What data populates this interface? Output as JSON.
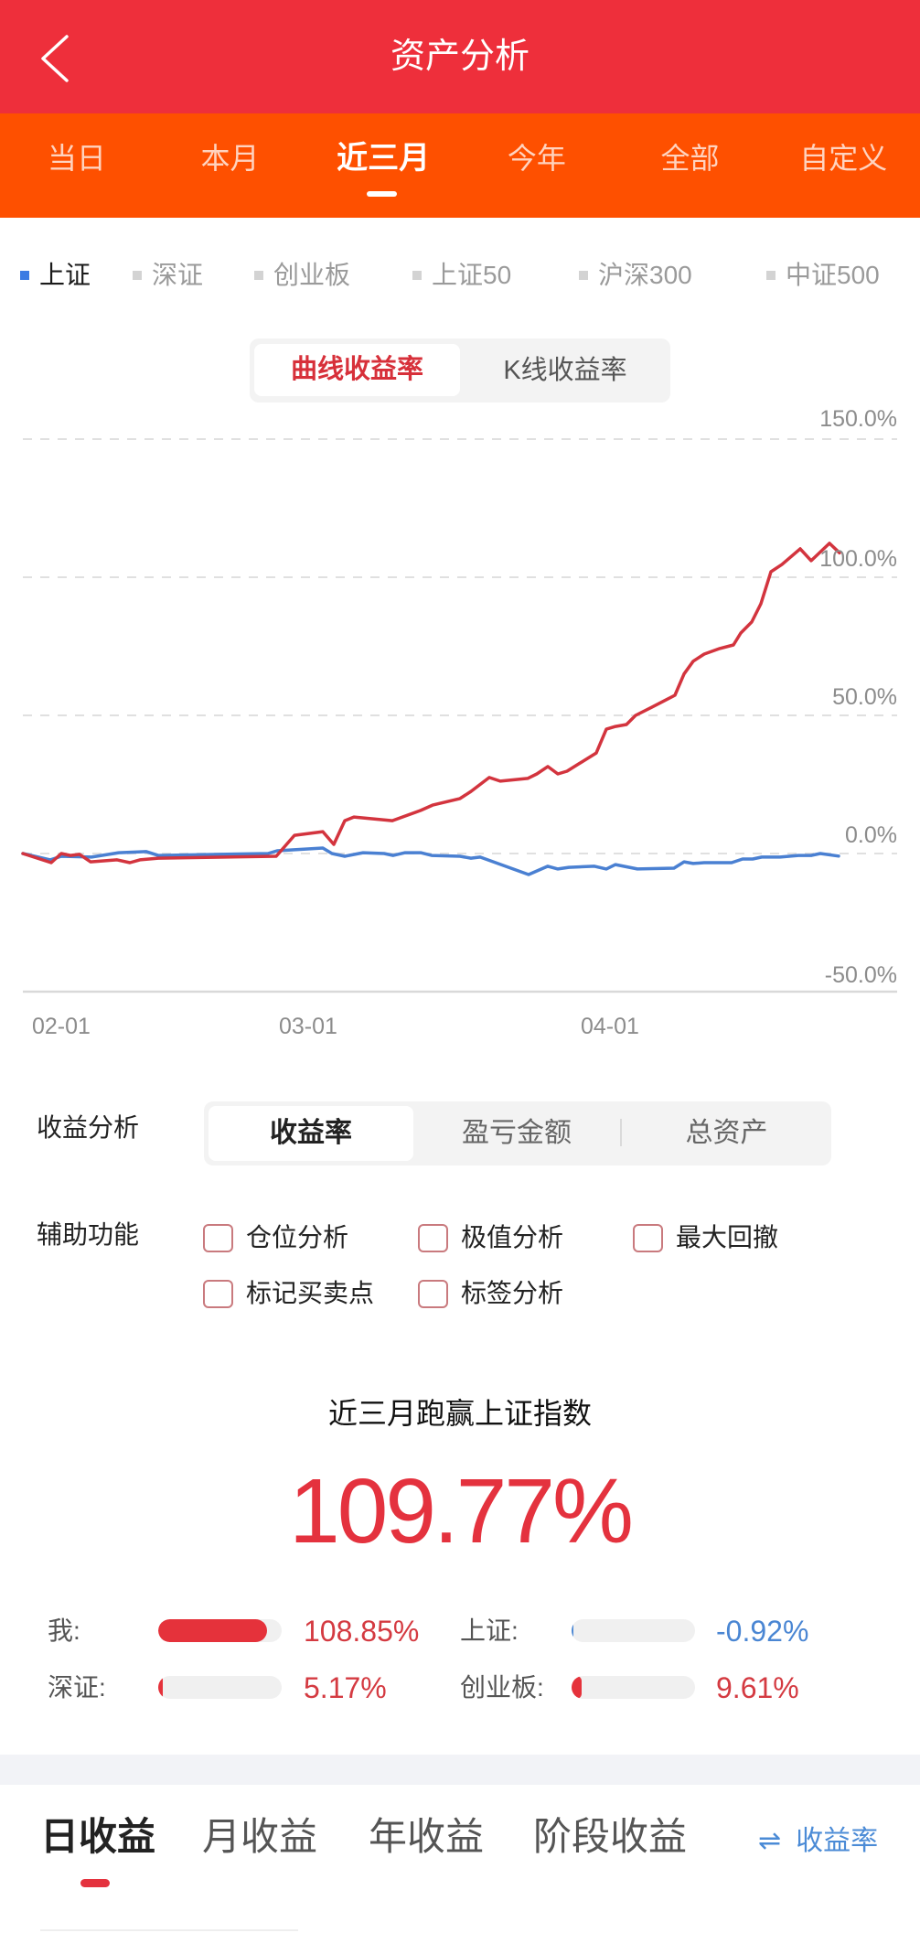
{
  "header": {
    "title": "资产分析",
    "back_icon": "chevron-left-icon"
  },
  "period_tabs": {
    "active_index": 2,
    "items": [
      {
        "label": "当日"
      },
      {
        "label": "本月"
      },
      {
        "label": "近三月"
      },
      {
        "label": "今年"
      },
      {
        "label": "全部"
      },
      {
        "label": "自定义"
      }
    ]
  },
  "index_legend": {
    "active_index": 0,
    "items": [
      {
        "label": "上证"
      },
      {
        "label": "深证"
      },
      {
        "label": "创业板"
      },
      {
        "label": "上证50"
      },
      {
        "label": "沪深300"
      },
      {
        "label": "中证500"
      }
    ]
  },
  "chart_mode_toggle": {
    "selected_index": 0,
    "options": [
      "曲线收益率",
      "K线收益率"
    ]
  },
  "chart_data": {
    "type": "line",
    "title": "",
    "xlabel": "",
    "ylabel": "",
    "ylim": [
      -50,
      150
    ],
    "y_ticks": [
      150,
      100,
      50,
      0,
      -50
    ],
    "y_tick_labels": [
      "150.0%",
      "100.0%",
      "50.0%",
      "0.0%",
      "-50.0%"
    ],
    "x_tick_labels": [
      "02-01",
      "03-01",
      "04-01"
    ],
    "x_axis_unit": "horizontal pixel position across plot (25 = start, 981 = end)",
    "grid": "dashed horizontal",
    "legend": [
      "上证"
    ],
    "series": [
      {
        "name": "上证",
        "color": "#4A80D2",
        "points": [
          [
            25,
            0
          ],
          [
            55,
            -2.3
          ],
          [
            67,
            -1
          ],
          [
            100,
            -1.3
          ],
          [
            130,
            0.3
          ],
          [
            160,
            0.7
          ],
          [
            173,
            -0.7
          ],
          [
            293,
            0
          ],
          [
            303,
            1
          ],
          [
            353,
            2
          ],
          [
            363,
            0
          ],
          [
            377,
            -1
          ],
          [
            397,
            0.3
          ],
          [
            420,
            0
          ],
          [
            430,
            -0.7
          ],
          [
            443,
            0.3
          ],
          [
            460,
            0.3
          ],
          [
            472,
            -0.7
          ],
          [
            503,
            -1
          ],
          [
            515,
            -1.7
          ],
          [
            525,
            -1.3
          ],
          [
            578,
            -7.6
          ],
          [
            599,
            -4.6
          ],
          [
            610,
            -5.6
          ],
          [
            622,
            -5
          ],
          [
            650,
            -4.6
          ],
          [
            663,
            -5.6
          ],
          [
            673,
            -4
          ],
          [
            697,
            -5.6
          ],
          [
            737,
            -5.3
          ],
          [
            748,
            -3
          ],
          [
            758,
            -3.6
          ],
          [
            770,
            -3.3
          ],
          [
            800,
            -3.3
          ],
          [
            812,
            -2
          ],
          [
            823,
            -2
          ],
          [
            833,
            -1.3
          ],
          [
            853,
            -1.3
          ],
          [
            873,
            -0.7
          ],
          [
            887,
            -0.7
          ],
          [
            897,
            0
          ],
          [
            917,
            -0.92
          ]
        ]
      },
      {
        "name": "我",
        "color": "#D3343E",
        "points": [
          [
            25,
            0
          ],
          [
            56,
            -3.3
          ],
          [
            67,
            0
          ],
          [
            77,
            -0.7
          ],
          [
            87,
            -0.3
          ],
          [
            99,
            -3
          ],
          [
            128,
            -2.3
          ],
          [
            142,
            -3.3
          ],
          [
            153,
            -2.3
          ],
          [
            173,
            -1.7
          ],
          [
            302,
            -1
          ],
          [
            322,
            6.6
          ],
          [
            353,
            7.9
          ],
          [
            365,
            3.3
          ],
          [
            377,
            11.9
          ],
          [
            387,
            13.2
          ],
          [
            420,
            12.2
          ],
          [
            429,
            11.9
          ],
          [
            460,
            15.6
          ],
          [
            473,
            17.5
          ],
          [
            503,
            19.9
          ],
          [
            515,
            22.5
          ],
          [
            535,
            27.5
          ],
          [
            547,
            26.2
          ],
          [
            577,
            27.2
          ],
          [
            587,
            28.8
          ],
          [
            599,
            31.5
          ],
          [
            610,
            28.8
          ],
          [
            620,
            29.8
          ],
          [
            633,
            32.5
          ],
          [
            652,
            36.4
          ],
          [
            663,
            45
          ],
          [
            673,
            46
          ],
          [
            685,
            46.7
          ],
          [
            695,
            50
          ],
          [
            713,
            53
          ],
          [
            738,
            57.3
          ],
          [
            748,
            65
          ],
          [
            758,
            69.6
          ],
          [
            770,
            72.2
          ],
          [
            787,
            74.2
          ],
          [
            802,
            75.5
          ],
          [
            810,
            79.8
          ],
          [
            822,
            83.8
          ],
          [
            832,
            90.4
          ],
          [
            843,
            102
          ],
          [
            855,
            104.6
          ],
          [
            875,
            110.3
          ],
          [
            887,
            106
          ],
          [
            907,
            112.3
          ],
          [
            918,
            108.85
          ]
        ]
      }
    ]
  },
  "analysis": {
    "label": "收益分析",
    "selected_index": 0,
    "segments": [
      "收益率",
      "盈亏金额",
      "总资产"
    ]
  },
  "aux_functions": {
    "label": "辅助功能",
    "options": [
      {
        "label": "仓位分析",
        "checked": false
      },
      {
        "label": "极值分析",
        "checked": false
      },
      {
        "label": "最大回撤",
        "checked": false
      },
      {
        "label": "标记买卖点",
        "checked": false
      },
      {
        "label": "标签分析",
        "checked": false
      }
    ]
  },
  "summary": {
    "title": "近三月跑赢上证指数",
    "value": "109.77%",
    "value_color": "#E4323E",
    "compare": [
      {
        "label": "我:",
        "value": "108.85%",
        "bar_fill": 0.88,
        "bar_color": "#E5323B",
        "value_color": "#D43A41"
      },
      {
        "label": "上证:",
        "value": "-0.92%",
        "bar_fill": 0.012,
        "bar_color": "#4A86D3",
        "value_color": "#4A86D3"
      },
      {
        "label": "深证:",
        "value": "5.17%",
        "bar_fill": 0.04,
        "bar_color": "#E5323B",
        "value_color": "#D43A41"
      },
      {
        "label": "创业板:",
        "value": "9.61%",
        "bar_fill": 0.08,
        "bar_color": "#E5323B",
        "value_color": "#D43A41"
      }
    ]
  },
  "bottom_tabs": {
    "active_index": 0,
    "items": [
      {
        "label": "日收益"
      },
      {
        "label": "月收益"
      },
      {
        "label": "年收益"
      },
      {
        "label": "阶段收益"
      }
    ],
    "switch": {
      "icon": "swap-arrows-icon",
      "icon_glyph": "⇌",
      "label": "收益率"
    }
  },
  "colors": {
    "header_bg": "#EE2F3B",
    "tabbar_bg": "#FE5000",
    "accent_red": "#E4323E",
    "accent_blue": "#4B8BD6"
  }
}
